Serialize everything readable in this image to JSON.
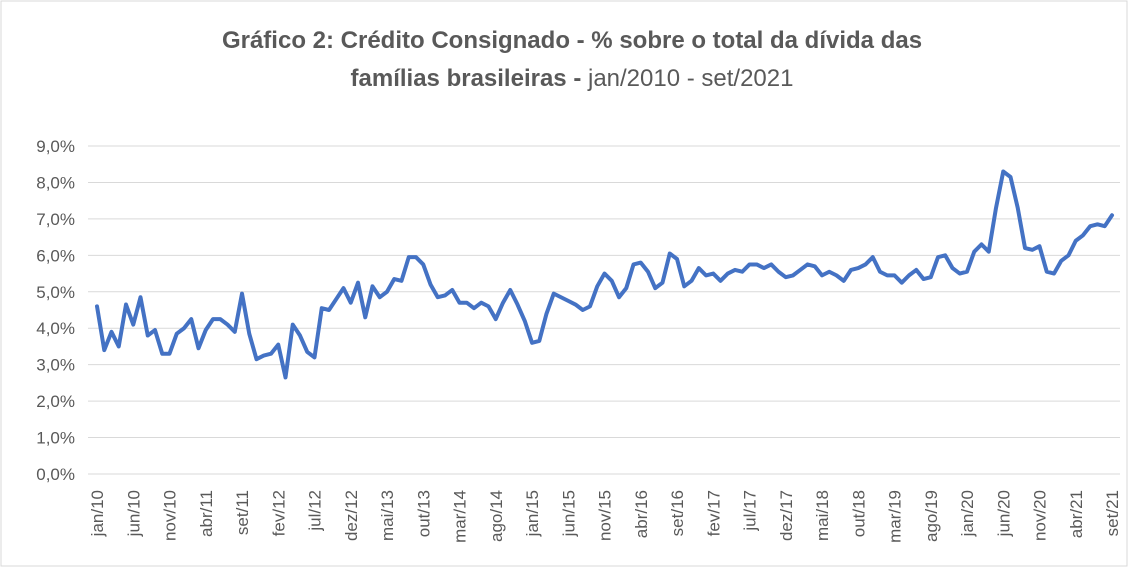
{
  "chart_data": {
    "type": "line",
    "title": [
      "Gráfico 2: Crédito Consignado - % sobre o total da dívida das",
      "famílias brasileiras -"
    ],
    "subtitle": "jan/2010 - set/2021",
    "categories": [
      "jan/10",
      null,
      null,
      null,
      null,
      "jun/10",
      null,
      null,
      null,
      null,
      "nov/10",
      null,
      null,
      null,
      null,
      "abr/11",
      null,
      null,
      null,
      null,
      "set/11",
      null,
      null,
      null,
      null,
      "fev/12",
      null,
      null,
      null,
      null,
      "jul/12",
      null,
      null,
      null,
      null,
      "dez/12",
      null,
      null,
      null,
      null,
      "mai/13",
      null,
      null,
      null,
      null,
      "out/13",
      null,
      null,
      null,
      null,
      "mar/14",
      null,
      null,
      null,
      null,
      "ago/14",
      null,
      null,
      null,
      null,
      "jan/15",
      null,
      null,
      null,
      null,
      "jun/15",
      null,
      null,
      null,
      null,
      "nov/15",
      null,
      null,
      null,
      null,
      "abr/16",
      null,
      null,
      null,
      null,
      "set/16",
      null,
      null,
      null,
      null,
      "fev/17",
      null,
      null,
      null,
      null,
      "jul/17",
      null,
      null,
      null,
      null,
      "dez/17",
      null,
      null,
      null,
      null,
      "mai/18",
      null,
      null,
      null,
      null,
      "out/18",
      null,
      null,
      null,
      null,
      "mar/19",
      null,
      null,
      null,
      null,
      "ago/19",
      null,
      null,
      null,
      null,
      "jan/20",
      null,
      null,
      null,
      null,
      "jun/20",
      null,
      null,
      null,
      null,
      "nov/20",
      null,
      null,
      null,
      null,
      "abr/21",
      null,
      null,
      null,
      null,
      "set/21"
    ],
    "series": [
      {
        "color": "#4472c4",
        "values": [
          4.6,
          3.4,
          3.9,
          3.5,
          4.65,
          4.1,
          4.85,
          3.8,
          3.95,
          3.3,
          3.3,
          3.85,
          4.0,
          4.25,
          3.45,
          3.95,
          4.25,
          4.25,
          4.1,
          3.9,
          4.95,
          3.85,
          3.15,
          3.25,
          3.3,
          3.55,
          2.65,
          4.1,
          3.8,
          3.35,
          3.2,
          4.55,
          4.5,
          4.8,
          5.1,
          4.7,
          5.25,
          4.3,
          5.15,
          4.85,
          5.0,
          5.35,
          5.3,
          5.95,
          5.95,
          5.75,
          5.2,
          4.85,
          4.9,
          5.05,
          4.7,
          4.7,
          4.55,
          4.7,
          4.6,
          4.25,
          4.7,
          5.05,
          4.65,
          4.2,
          3.6,
          3.65,
          4.4,
          4.95,
          4.85,
          4.75,
          4.65,
          4.5,
          4.6,
          5.15,
          5.5,
          5.3,
          4.85,
          5.1,
          5.75,
          5.8,
          5.55,
          5.1,
          5.25,
          6.05,
          5.9,
          5.15,
          5.3,
          5.65,
          5.45,
          5.5,
          5.3,
          5.5,
          5.6,
          5.55,
          5.75,
          5.75,
          5.65,
          5.75,
          5.55,
          5.4,
          5.45,
          5.6,
          5.75,
          5.7,
          5.45,
          5.55,
          5.45,
          5.3,
          5.6,
          5.65,
          5.75,
          5.95,
          5.55,
          5.45,
          5.45,
          5.25,
          5.45,
          5.6,
          5.35,
          5.4,
          5.95,
          6.0,
          5.65,
          5.5,
          5.55,
          6.1,
          6.3,
          6.1,
          7.3,
          8.3,
          8.15,
          7.3,
          6.2,
          6.15,
          6.25,
          5.55,
          5.5,
          5.85,
          6.0,
          6.4,
          6.55,
          6.8,
          6.85,
          6.8,
          7.1
        ]
      }
    ],
    "ylim": [
      0,
      9
    ],
    "yticks": [
      {
        "value": 0,
        "label": "0,0%"
      },
      {
        "value": 1,
        "label": "1,0%"
      },
      {
        "value": 2,
        "label": "2,0%"
      },
      {
        "value": 3,
        "label": "3,0%"
      },
      {
        "value": 4,
        "label": "4,0%"
      },
      {
        "value": 5,
        "label": "5,0%"
      },
      {
        "value": 6,
        "label": "6,0%"
      },
      {
        "value": 7,
        "label": "7,0%"
      },
      {
        "value": 8,
        "label": "8,0%"
      },
      {
        "value": 9,
        "label": "9,0%"
      }
    ],
    "grid": true
  }
}
